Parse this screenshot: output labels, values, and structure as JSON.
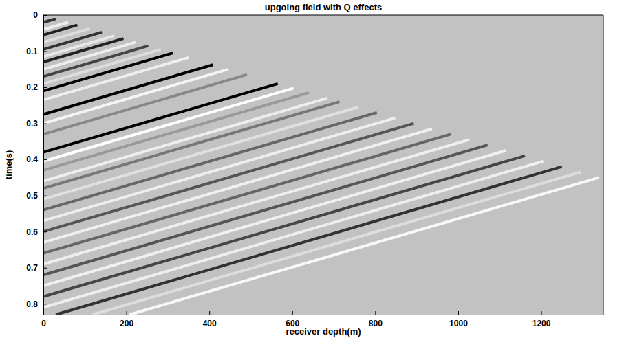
{
  "chart_data": {
    "type": "line",
    "title": "upgoing field with Q effects",
    "x_label": "receiver depth(m)",
    "y_label": "time(s)",
    "xlim": [
      0,
      1350
    ],
    "ylim": [
      0.83,
      0
    ],
    "xticks": [
      0,
      200,
      400,
      600,
      800,
      1000,
      1200
    ],
    "yticks": [
      0,
      0.1,
      0.2,
      0.3,
      0.4,
      0.5,
      0.6,
      0.7,
      0.8
    ],
    "series": [
      {
        "x": [
          0,
          30
        ],
        "values": [
          0.02,
          0.01
        ],
        "color": "#333333"
      },
      {
        "x": [
          0,
          60
        ],
        "values": [
          0.04,
          0.02
        ],
        "color": "#eeeeee"
      },
      {
        "x": [
          0,
          82
        ],
        "values": [
          0.055,
          0.0275
        ],
        "color": "#222222"
      },
      {
        "x": [
          0,
          112
        ],
        "values": [
          0.075,
          0.0375
        ],
        "color": "#dddddd"
      },
      {
        "x": [
          0,
          141
        ],
        "values": [
          0.095,
          0.0475
        ],
        "color": "#333333"
      },
      {
        "x": [
          0,
          171
        ],
        "values": [
          0.115,
          0.0575
        ],
        "color": "#e8e8e8"
      },
      {
        "x": [
          0,
          193
        ],
        "values": [
          0.13,
          0.065
        ],
        "color": "#222222"
      },
      {
        "x": [
          0,
          223
        ],
        "values": [
          0.15,
          0.075
        ],
        "color": "#eeeeee"
      },
      {
        "x": [
          0,
          253
        ],
        "values": [
          0.17,
          0.085
        ],
        "color": "#444444"
      },
      {
        "x": [
          0,
          283
        ],
        "values": [
          0.19,
          0.095
        ],
        "color": "#dddddd"
      },
      {
        "x": [
          0,
          312
        ],
        "values": [
          0.21,
          0.105
        ],
        "color": "#000000"
      },
      {
        "x": [
          0,
          350
        ],
        "values": [
          0.235,
          0.1175
        ],
        "color": "#eeeeee"
      },
      {
        "x": [
          0,
          409
        ],
        "values": [
          0.275,
          0.1375
        ],
        "color": "#000000"
      },
      {
        "x": [
          0,
          446
        ],
        "values": [
          0.3,
          0.15
        ],
        "color": "#f5f5f5"
      },
      {
        "x": [
          0,
          491
        ],
        "values": [
          0.33,
          0.165
        ],
        "color": "#888888"
      },
      {
        "x": [
          0,
          565
        ],
        "values": [
          0.38,
          0.19
        ],
        "color": "#000000"
      },
      {
        "x": [
          0,
          603
        ],
        "values": [
          0.405,
          0.2025
        ],
        "color": "#ffffff"
      },
      {
        "x": [
          0,
          640
        ],
        "values": [
          0.43,
          0.215
        ],
        "color": "#999999"
      },
      {
        "x": [
          0,
          684
        ],
        "values": [
          0.46,
          0.23
        ],
        "color": "#eeeeee"
      },
      {
        "x": [
          0,
          714
        ],
        "values": [
          0.48,
          0.24
        ],
        "color": "#777777"
      },
      {
        "x": [
          0,
          759
        ],
        "values": [
          0.51,
          0.255
        ],
        "color": "#e0e0e0"
      },
      {
        "x": [
          0,
          804
        ],
        "values": [
          0.54,
          0.27
        ],
        "color": "#666666"
      },
      {
        "x": [
          0,
          848
        ],
        "values": [
          0.57,
          0.285
        ],
        "color": "#eeeeee"
      },
      {
        "x": [
          0,
          893
        ],
        "values": [
          0.6,
          0.3
        ],
        "color": "#555555"
      },
      {
        "x": [
          0,
          937
        ],
        "values": [
          0.63,
          0.315
        ],
        "color": "#f0f0f0"
      },
      {
        "x": [
          0,
          982
        ],
        "values": [
          0.66,
          0.33
        ],
        "color": "#666666"
      },
      {
        "x": [
          0,
          1027
        ],
        "values": [
          0.69,
          0.345
        ],
        "color": "#eeeeee"
      },
      {
        "x": [
          0,
          1071
        ],
        "values": [
          0.72,
          0.36
        ],
        "color": "#555555"
      },
      {
        "x": [
          0,
          1116
        ],
        "values": [
          0.75,
          0.375
        ],
        "color": "#f0f0f0"
      },
      {
        "x": [
          0,
          1161
        ],
        "values": [
          0.78,
          0.39
        ],
        "color": "#444444"
      },
      {
        "x": [
          0,
          1205
        ],
        "values": [
          0.81,
          0.405
        ],
        "color": "#eeeeee"
      },
      {
        "x": [
          30,
          1250
        ],
        "values": [
          0.83,
          0.42
        ],
        "color": "#333333"
      },
      {
        "x": [
          119,
          1295
        ],
        "values": [
          0.83,
          0.435
        ],
        "color": "#dddddd"
      },
      {
        "x": [
          208,
          1340
        ],
        "values": [
          0.83,
          0.45
        ],
        "color": "#f8f8f8"
      }
    ]
  }
}
